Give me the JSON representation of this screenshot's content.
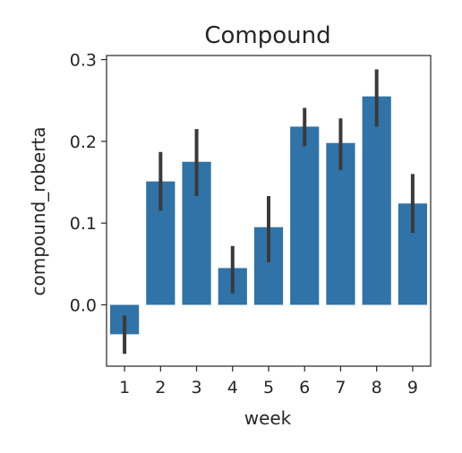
{
  "chart_data": {
    "type": "bar",
    "title": "Compound",
    "xlabel": "week",
    "ylabel": "compound_roberta",
    "categories": [
      "1",
      "2",
      "3",
      "4",
      "5",
      "6",
      "7",
      "8",
      "9"
    ],
    "values": [
      -0.036,
      0.151,
      0.175,
      0.045,
      0.095,
      0.218,
      0.198,
      0.255,
      0.124
    ],
    "error_low": [
      -0.06,
      0.115,
      0.133,
      0.014,
      0.052,
      0.194,
      0.165,
      0.218,
      0.088
    ],
    "error_high": [
      -0.013,
      0.187,
      0.215,
      0.072,
      0.133,
      0.241,
      0.228,
      0.288,
      0.16
    ],
    "ylim": [
      -0.075,
      0.305
    ],
    "yticks": [
      0.0,
      0.1,
      0.2,
      0.3
    ],
    "ytick_labels": [
      "0.0",
      "0.1",
      "0.2",
      "0.3"
    ],
    "grid": false,
    "colors": {
      "bar": "#2f73a8",
      "error": "#3a3a3a",
      "axis": "#262626"
    }
  }
}
